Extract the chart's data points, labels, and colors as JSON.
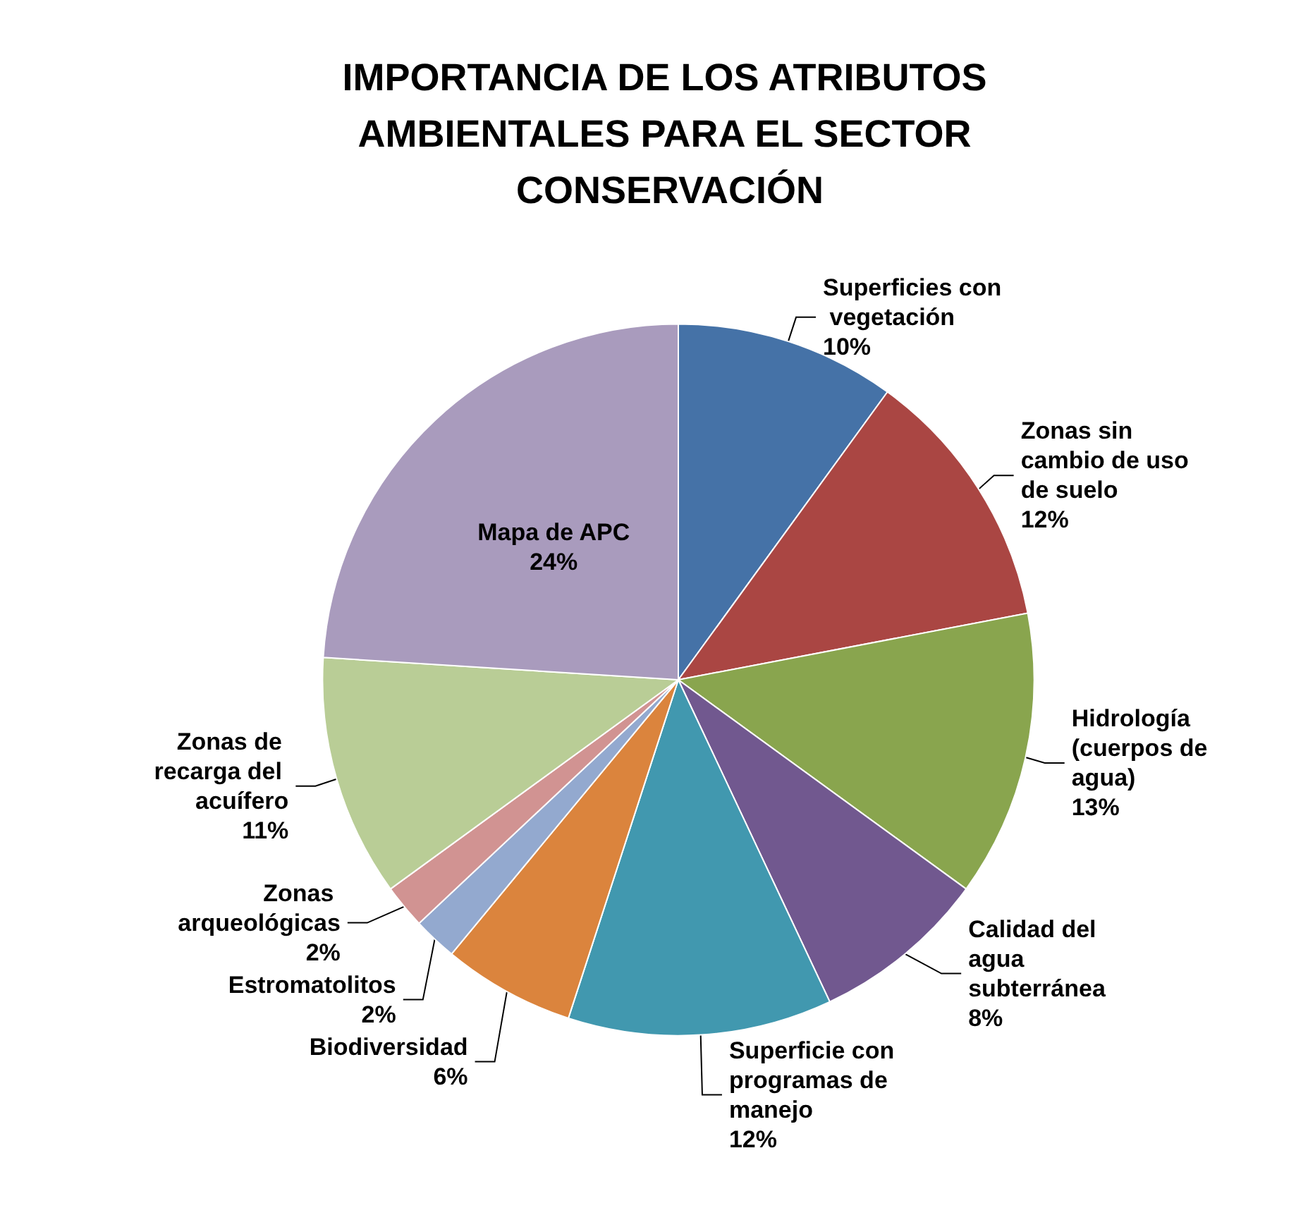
{
  "chart_data": {
    "type": "pie",
    "title": "IMPORTANCIA DE LOS ATRIBUTOS AMBIENTALES PARA EL SECTOR CONSERVACIÓN",
    "categories": [
      "Superficies con vegetación",
      "Zonas sin cambio de uso de suelo",
      "Hidrología (cuerpos de agua)",
      "Calidad del agua subterránea",
      "Superficie con programas de manejo",
      "Biodiversidad",
      "Estromatolitos",
      "Zonas arqueológicas",
      "Zonas de recarga del acuífero",
      "Mapa de APC"
    ],
    "values": [
      10,
      12,
      13,
      8,
      12,
      6,
      2,
      2,
      11,
      24
    ],
    "value_labels": [
      "10%",
      "12%",
      "13%",
      "8%",
      "12%",
      "6%",
      "2%",
      "2%",
      "11%",
      "24%"
    ],
    "colors": [
      "#4572a7",
      "#aa4643",
      "#89a54e",
      "#71588f",
      "#4198af",
      "#db843d",
      "#93a9cf",
      "#d19392",
      "#b9cd96",
      "#a99bbd"
    ],
    "legend": false
  }
}
